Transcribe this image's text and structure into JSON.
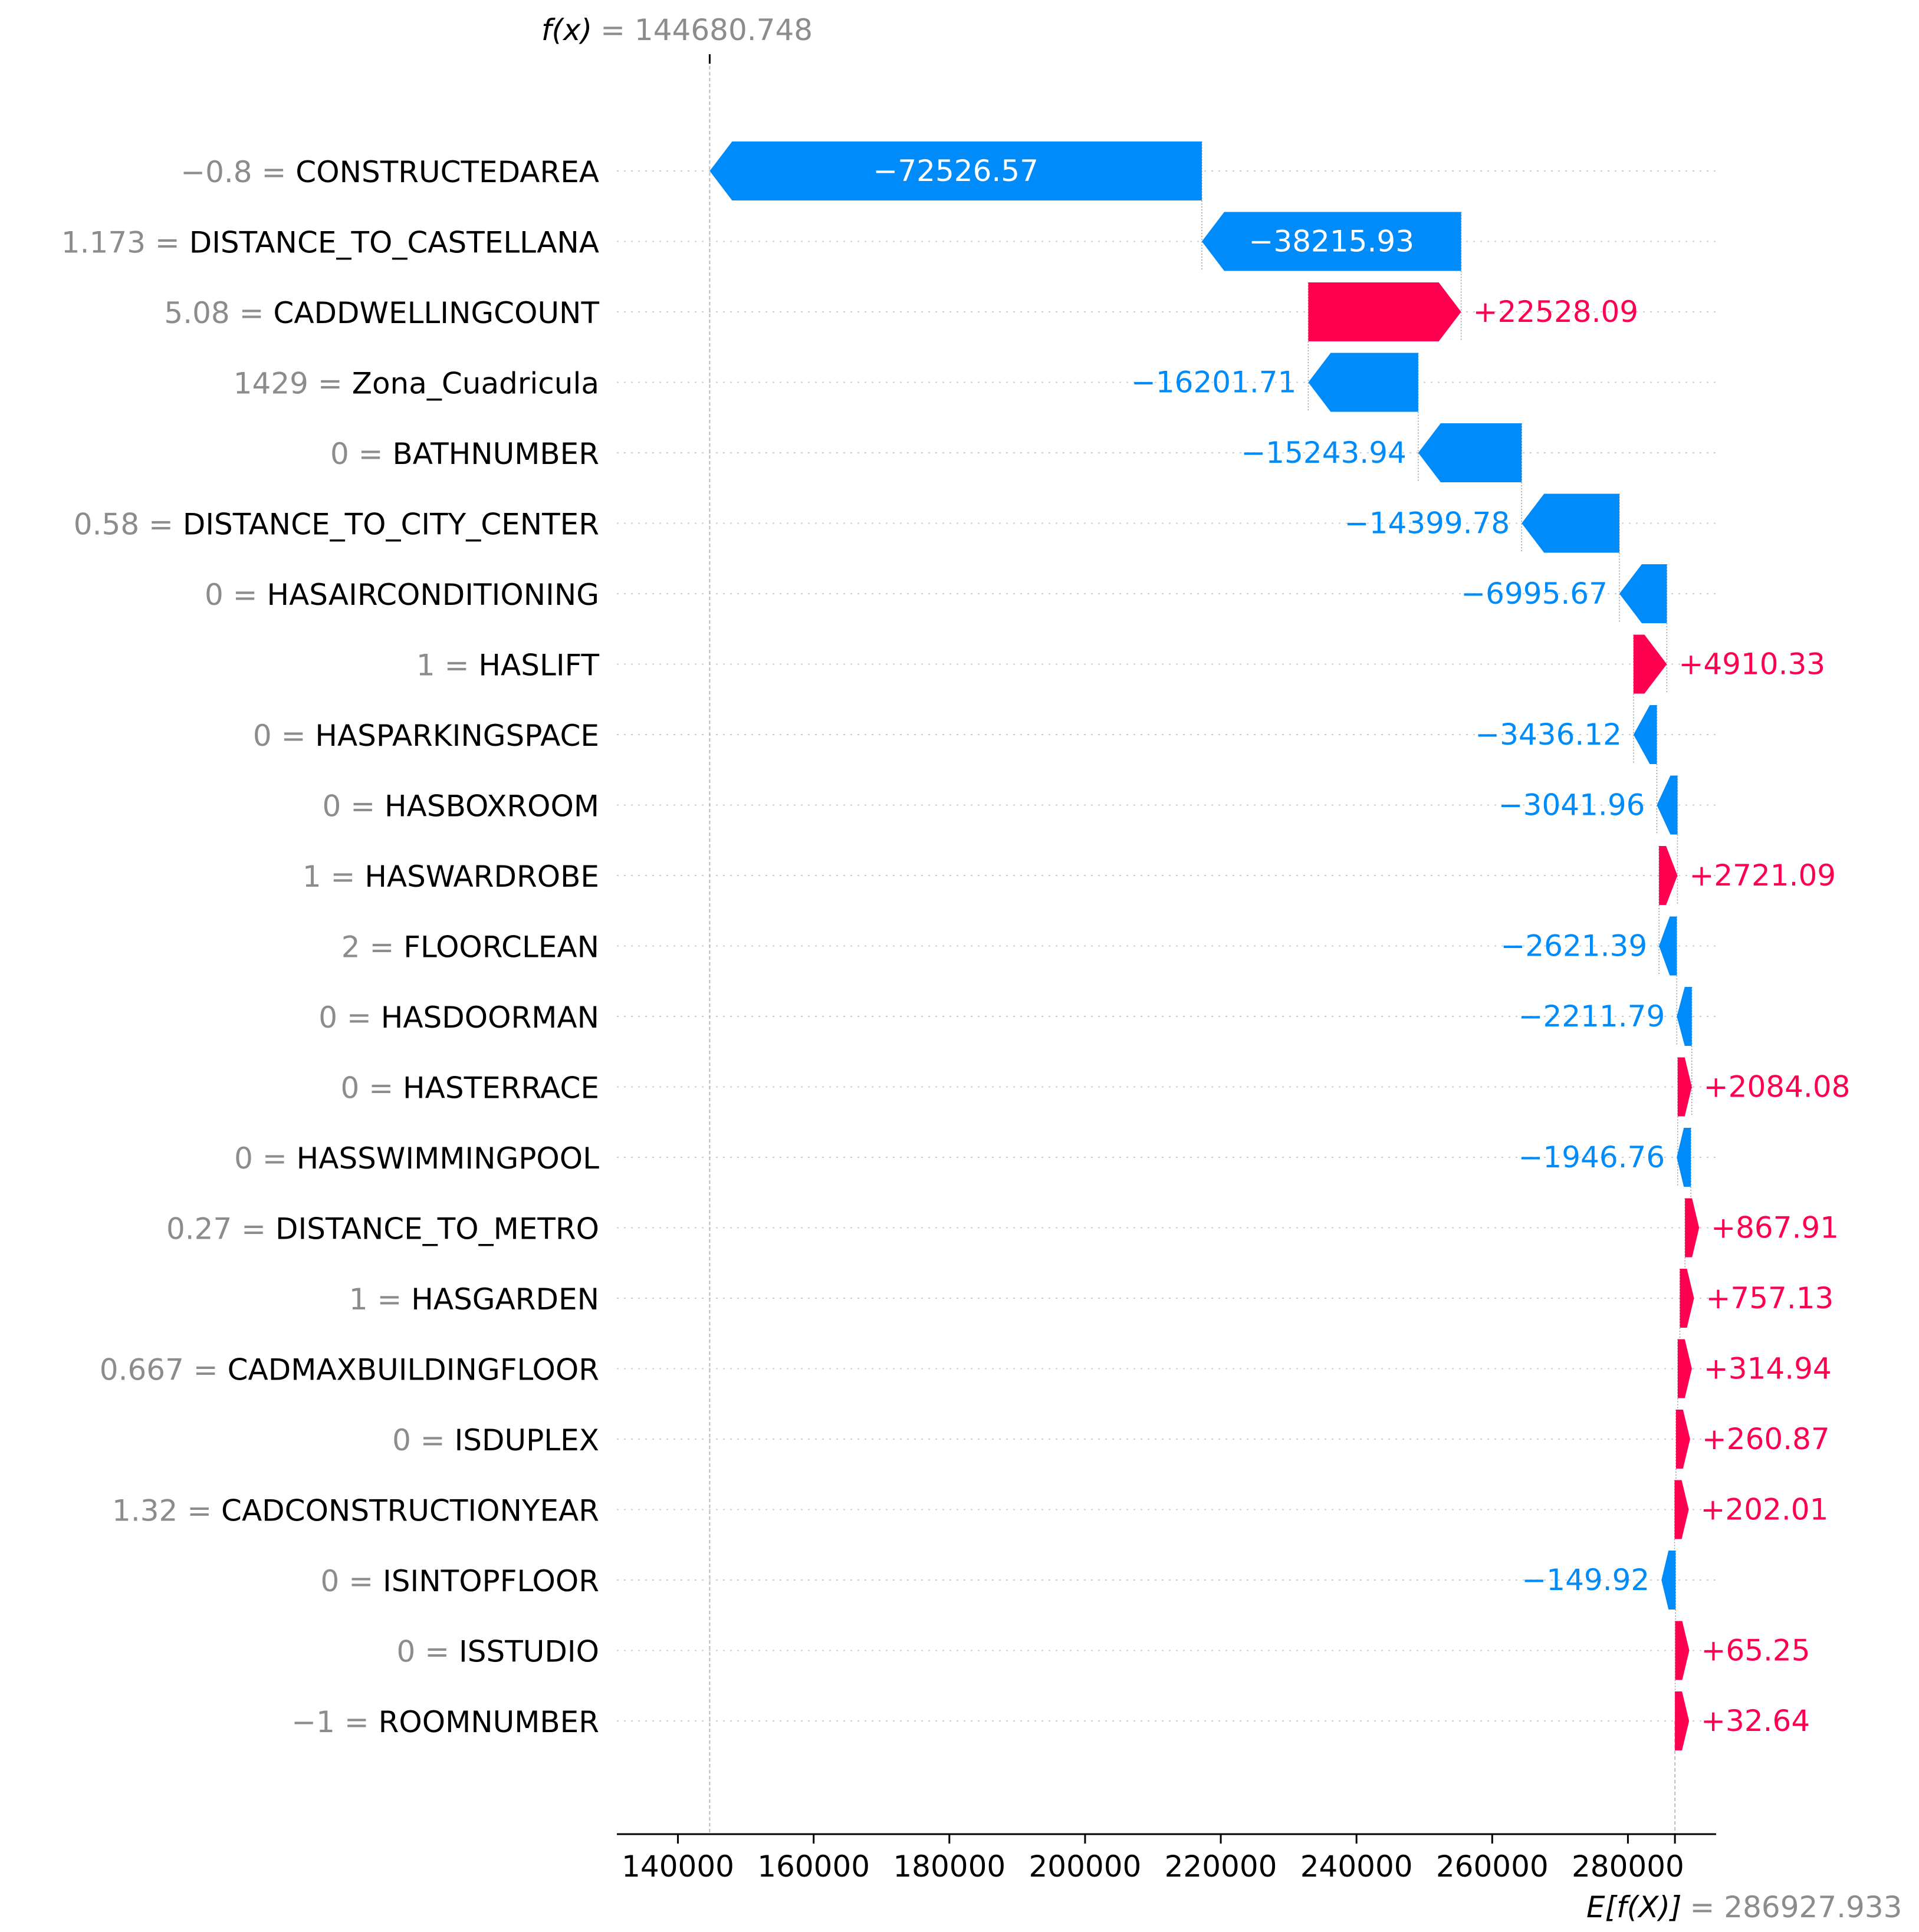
{
  "chart_data": {
    "type": "waterfall",
    "fx_label": "f(x)",
    "fx_value": "= 144680.748",
    "fx": 144680.748,
    "efx_label": "E[f(X)]",
    "efx_value": "= 286927.933",
    "efx": 286927.933,
    "xlim": [
      131000,
      293000
    ],
    "xticks": [
      140000,
      160000,
      180000,
      200000,
      220000,
      240000,
      260000,
      280000
    ],
    "xtick_labels": [
      "140000",
      "160000",
      "180000",
      "200000",
      "220000",
      "240000",
      "260000",
      "280000"
    ],
    "colors": {
      "positive": "#ff0051",
      "negative": "#008bfb",
      "value_text": "#8c8c8c"
    },
    "features": [
      {
        "value": "−0.8",
        "name": "CONSTRUCTEDAREA",
        "shap": -72526.57,
        "label": "−72526.57"
      },
      {
        "value": "1.173",
        "name": "DISTANCE_TO_CASTELLANA",
        "shap": -38215.93,
        "label": "−38215.93"
      },
      {
        "value": "5.08",
        "name": "CADDWELLINGCOUNT",
        "shap": 22528.09,
        "label": "+22528.09"
      },
      {
        "value": "1429",
        "name": "Zona_Cuadricula",
        "shap": -16201.71,
        "label": "−16201.71"
      },
      {
        "value": "0",
        "name": "BATHNUMBER",
        "shap": -15243.94,
        "label": "−15243.94"
      },
      {
        "value": "0.58",
        "name": "DISTANCE_TO_CITY_CENTER",
        "shap": -14399.78,
        "label": "−14399.78"
      },
      {
        "value": "0",
        "name": "HASAIRCONDITIONING",
        "shap": -6995.67,
        "label": "−6995.67"
      },
      {
        "value": "1",
        "name": "HASLIFT",
        "shap": 4910.33,
        "label": "+4910.33"
      },
      {
        "value": "0",
        "name": "HASPARKINGSPACE",
        "shap": -3436.12,
        "label": "−3436.12"
      },
      {
        "value": "0",
        "name": "HASBOXROOM",
        "shap": -3041.96,
        "label": "−3041.96"
      },
      {
        "value": "1",
        "name": "HASWARDROBE",
        "shap": 2721.09,
        "label": "+2721.09"
      },
      {
        "value": "2",
        "name": "FLOORCLEAN",
        "shap": -2621.39,
        "label": "−2621.39"
      },
      {
        "value": "0",
        "name": "HASDOORMAN",
        "shap": -2211.79,
        "label": "−2211.79"
      },
      {
        "value": "0",
        "name": "HASTERRACE",
        "shap": 2084.08,
        "label": "+2084.08"
      },
      {
        "value": "0",
        "name": "HASSWIMMINGPOOL",
        "shap": -1946.76,
        "label": "−1946.76"
      },
      {
        "value": "0.27",
        "name": "DISTANCE_TO_METRO",
        "shap": 867.91,
        "label": "+867.91"
      },
      {
        "value": "1",
        "name": "HASGARDEN",
        "shap": 757.13,
        "label": "+757.13"
      },
      {
        "value": "0.667",
        "name": "CADMAXBUILDINGFLOOR",
        "shap": 314.94,
        "label": "+314.94"
      },
      {
        "value": "0",
        "name": "ISDUPLEX",
        "shap": 260.87,
        "label": "+260.87"
      },
      {
        "value": "1.32",
        "name": "CADCONSTRUCTIONYEAR",
        "shap": 202.01,
        "label": "+202.01"
      },
      {
        "value": "0",
        "name": "ISINTOPFLOOR",
        "shap": -149.92,
        "label": "−149.92"
      },
      {
        "value": "0",
        "name": "ISSTUDIO",
        "shap": 65.25,
        "label": "+65.25"
      },
      {
        "value": "−1",
        "name": "ROOMNUMBER",
        "shap": 32.64,
        "label": "+32.64"
      }
    ]
  }
}
